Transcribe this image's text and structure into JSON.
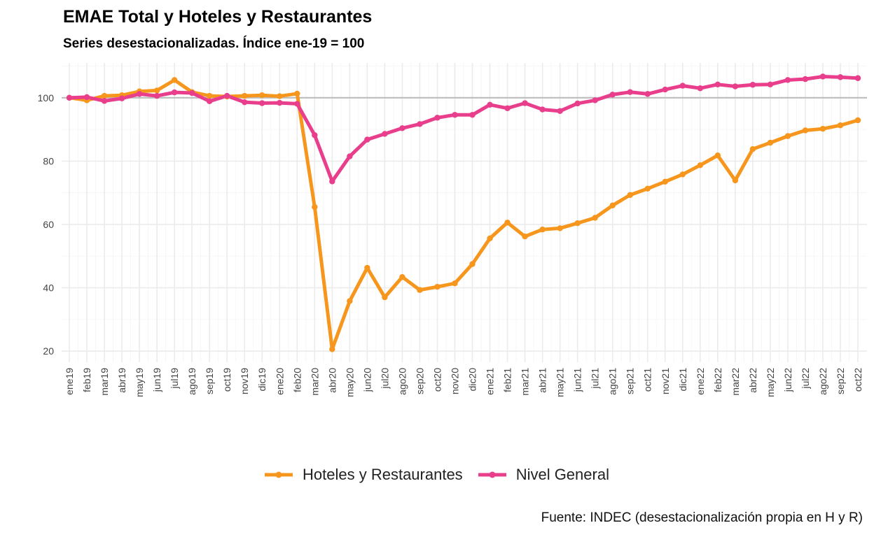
{
  "chart_data": {
    "type": "line",
    "title": "EMAE Total y Hoteles y Restaurantes",
    "subtitle": "Series desestacionalizadas. Índice ene-19 = 100",
    "caption": "Fuente: INDEC (desestacionalización propia en H y R)",
    "categories": [
      "ene19",
      "feb19",
      "mar19",
      "abr19",
      "may19",
      "jun19",
      "jul19",
      "ago19",
      "sep19",
      "oct19",
      "nov19",
      "dic19",
      "ene20",
      "feb20",
      "mar20",
      "abr20",
      "may20",
      "jun20",
      "jul20",
      "ago20",
      "sep20",
      "oct20",
      "nov20",
      "dic20",
      "ene21",
      "feb21",
      "mar21",
      "abr21",
      "may21",
      "jun21",
      "jul21",
      "ago21",
      "sep21",
      "oct21",
      "nov21",
      "dic21",
      "ene22",
      "feb22",
      "mar22",
      "abr22",
      "may22",
      "jun22",
      "jul22",
      "ago22",
      "sep22",
      "oct22"
    ],
    "series": [
      {
        "name": "Hoteles y Restaurantes",
        "color": "#F7961C",
        "values": [
          100.0,
          99.2,
          100.6,
          100.8,
          102.0,
          102.3,
          105.6,
          101.8,
          100.6,
          100.4,
          100.6,
          100.8,
          100.5,
          101.3,
          65.5,
          20.6,
          35.8,
          46.3,
          37.0,
          43.4,
          39.3,
          40.3,
          41.4,
          47.5,
          55.6,
          60.6,
          56.2,
          58.4,
          58.8,
          60.4,
          62.1,
          66.0,
          69.3,
          71.3,
          73.5,
          75.8,
          78.7,
          81.8,
          73.9,
          83.8,
          85.8,
          87.9,
          89.7,
          90.2,
          91.3,
          92.9
        ]
      },
      {
        "name": "Nivel General",
        "color": "#E83E8C",
        "values": [
          100.0,
          100.2,
          99.0,
          99.8,
          101.2,
          100.6,
          101.7,
          101.5,
          98.9,
          100.6,
          98.6,
          98.3,
          98.4,
          98.1,
          88.2,
          73.6,
          81.5,
          86.8,
          88.6,
          90.4,
          91.7,
          93.7,
          94.6,
          94.6,
          97.8,
          96.7,
          98.3,
          96.3,
          95.8,
          98.2,
          99.2,
          101.0,
          101.8,
          101.2,
          102.6,
          103.8,
          103.0,
          104.2,
          103.6,
          104.1,
          104.2,
          105.6,
          105.9,
          106.7,
          106.5,
          106.2
        ]
      }
    ],
    "y_ticks": [
      20,
      40,
      60,
      80,
      100
    ],
    "ylim": [
      16.5,
      111
    ],
    "reference_line": 100,
    "grid": true,
    "legend_position": "bottom"
  }
}
